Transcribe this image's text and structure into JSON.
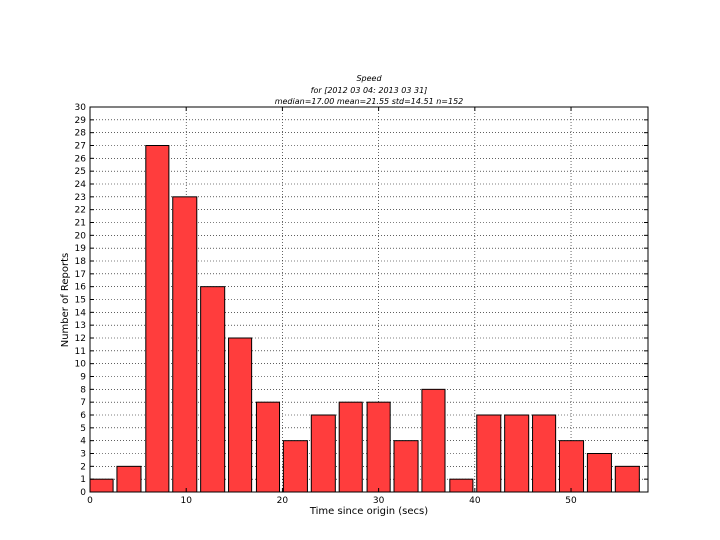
{
  "chart_data": {
    "type": "bar",
    "title_lines": [
      "Speed",
      "for [2012 03 04: 2013 03 31]",
      "median=17.00 mean=21.55 std=14.51 n=152"
    ],
    "xlabel": "Time since origin (secs)",
    "ylabel": "Number of Reports",
    "xlim": [
      0,
      58
    ],
    "ylim": [
      0,
      30
    ],
    "x_ticks": [
      "0",
      "10",
      "20",
      "30",
      "40",
      "50"
    ],
    "y_ticks": [
      "0",
      "1",
      "2",
      "3",
      "4",
      "5",
      "6",
      "7",
      "8",
      "9",
      "10",
      "11",
      "12",
      "13",
      "14",
      "15",
      "16",
      "17",
      "18",
      "19",
      "20",
      "21",
      "22",
      "23",
      "24",
      "25",
      "26",
      "27",
      "28",
      "29",
      "30"
    ],
    "grid": true,
    "bar_color": "#ff3d3d",
    "bars": [
      {
        "x_start": 0.0,
        "x_end": 2.4,
        "value": 1
      },
      {
        "x_start": 2.8,
        "x_end": 5.3,
        "value": 2
      },
      {
        "x_start": 5.8,
        "x_end": 8.2,
        "value": 27
      },
      {
        "x_start": 8.6,
        "x_end": 11.1,
        "value": 23
      },
      {
        "x_start": 11.5,
        "x_end": 14.0,
        "value": 16
      },
      {
        "x_start": 14.4,
        "x_end": 16.8,
        "value": 12
      },
      {
        "x_start": 17.3,
        "x_end": 19.7,
        "value": 7
      },
      {
        "x_start": 20.1,
        "x_end": 22.6,
        "value": 4
      },
      {
        "x_start": 23.0,
        "x_end": 25.5,
        "value": 6
      },
      {
        "x_start": 25.9,
        "x_end": 28.3,
        "value": 7
      },
      {
        "x_start": 28.8,
        "x_end": 31.2,
        "value": 7
      },
      {
        "x_start": 31.6,
        "x_end": 34.1,
        "value": 4
      },
      {
        "x_start": 34.5,
        "x_end": 36.9,
        "value": 8
      },
      {
        "x_start": 37.4,
        "x_end": 39.8,
        "value": 1
      },
      {
        "x_start": 40.2,
        "x_end": 42.7,
        "value": 6
      },
      {
        "x_start": 43.1,
        "x_end": 45.6,
        "value": 6
      },
      {
        "x_start": 46.0,
        "x_end": 48.4,
        "value": 6
      },
      {
        "x_start": 48.8,
        "x_end": 51.3,
        "value": 4
      },
      {
        "x_start": 51.7,
        "x_end": 54.2,
        "value": 3
      },
      {
        "x_start": 54.6,
        "x_end": 57.1,
        "value": 2
      }
    ]
  }
}
